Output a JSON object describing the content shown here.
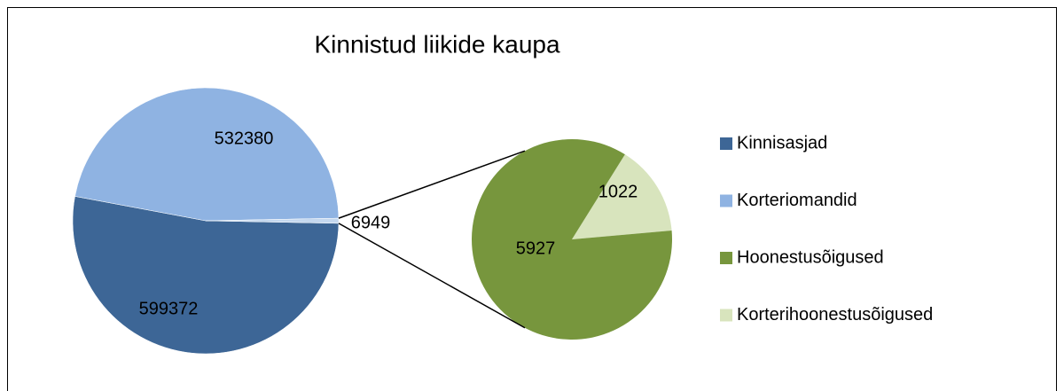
{
  "chart_data": {
    "type": "pie",
    "title": "Kinnistud liikide kaupa",
    "categories": [
      "Kinnisasjad",
      "Korteriomandid",
      "Hoonestusõigused",
      "Korterihoonestusõigused"
    ],
    "values": [
      599372,
      532380,
      5927,
      1022
    ],
    "colors": [
      "#3d6696",
      "#8fb3e2",
      "#77963d",
      "#d8e4bd"
    ],
    "combined_value": 6949,
    "combined_color": "#c5d8ef",
    "legend": "right"
  }
}
